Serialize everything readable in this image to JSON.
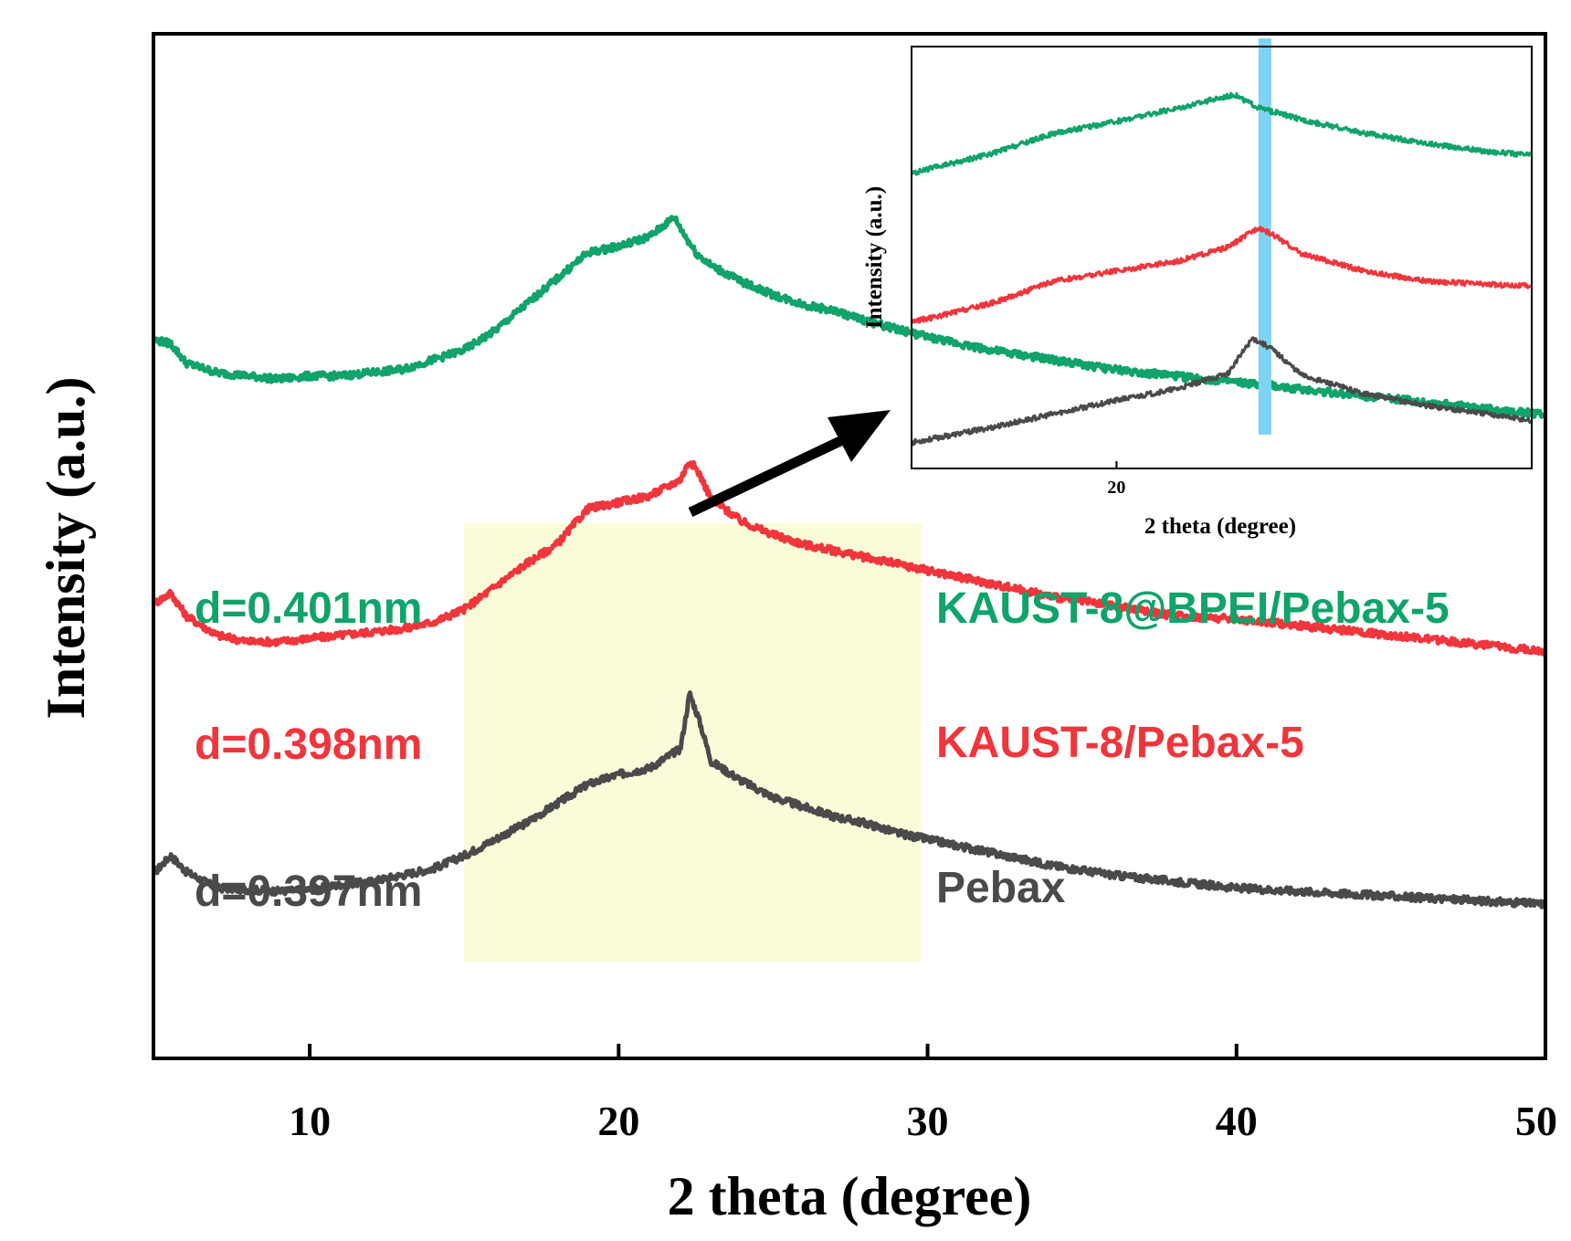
{
  "chart_data": {
    "type": "line",
    "title": "",
    "xlabel": "2 theta (degree)",
    "ylabel": "Intensity (a.u.)",
    "xlim": [
      5,
      50
    ],
    "x_ticks": [
      "10",
      "20",
      "30",
      "40",
      "50"
    ],
    "x_tick_values": [
      10,
      20,
      30,
      40,
      50
    ],
    "highlight_region": {
      "x_from": 15,
      "x_to": 29.8,
      "color": "#fafcd9"
    },
    "series": [
      {
        "name": "Pebax",
        "d_label": "d=0.397nm",
        "color": "#4a4a4a",
        "points": [
          [
            5,
            0.17
          ],
          [
            5.5,
            0.22
          ],
          [
            6,
            0.17
          ],
          [
            7,
            0.12
          ],
          [
            8,
            0.115
          ],
          [
            9,
            0.11
          ],
          [
            10,
            0.115
          ],
          [
            11,
            0.13
          ],
          [
            12,
            0.14
          ],
          [
            13,
            0.16
          ],
          [
            14,
            0.18
          ],
          [
            15,
            0.22
          ],
          [
            16,
            0.27
          ],
          [
            17,
            0.32
          ],
          [
            18,
            0.38
          ],
          [
            19,
            0.44
          ],
          [
            20,
            0.47
          ],
          [
            21,
            0.49
          ],
          [
            22,
            0.55
          ],
          [
            22.3,
            0.72
          ],
          [
            22.6,
            0.64
          ],
          [
            23,
            0.51
          ],
          [
            24,
            0.45
          ],
          [
            25,
            0.4
          ],
          [
            26,
            0.37
          ],
          [
            27,
            0.34
          ],
          [
            28,
            0.32
          ],
          [
            29,
            0.29
          ],
          [
            30,
            0.27
          ],
          [
            32,
            0.23
          ],
          [
            34,
            0.19
          ],
          [
            36,
            0.16
          ],
          [
            38,
            0.14
          ],
          [
            40,
            0.12
          ],
          [
            42,
            0.11
          ],
          [
            44,
            0.1
          ],
          [
            46,
            0.09
          ],
          [
            48,
            0.08
          ],
          [
            50,
            0.07
          ]
        ]
      },
      {
        "name": "KAUST-8/Pebax-5",
        "d_label": "d=0.398nm",
        "color": "#f0353c",
        "points": [
          [
            5,
            1.0
          ],
          [
            5.5,
            1.03
          ],
          [
            6,
            0.96
          ],
          [
            7,
            0.9
          ],
          [
            8,
            0.88
          ],
          [
            9,
            0.88
          ],
          [
            10,
            0.89
          ],
          [
            11,
            0.9
          ],
          [
            12,
            0.91
          ],
          [
            13,
            0.92
          ],
          [
            14,
            0.94
          ],
          [
            15,
            0.98
          ],
          [
            16,
            1.05
          ],
          [
            17,
            1.12
          ],
          [
            18,
            1.18
          ],
          [
            19,
            1.29
          ],
          [
            20,
            1.31
          ],
          [
            21,
            1.33
          ],
          [
            22,
            1.38
          ],
          [
            22.3,
            1.44
          ],
          [
            22.6,
            1.4
          ],
          [
            23,
            1.32
          ],
          [
            24,
            1.25
          ],
          [
            25,
            1.21
          ],
          [
            26,
            1.18
          ],
          [
            27,
            1.16
          ],
          [
            28,
            1.14
          ],
          [
            30,
            1.1
          ],
          [
            32,
            1.06
          ],
          [
            34,
            1.02
          ],
          [
            36,
            0.99
          ],
          [
            38,
            0.96
          ],
          [
            40,
            0.95
          ],
          [
            42,
            0.93
          ],
          [
            44,
            0.91
          ],
          [
            46,
            0.89
          ],
          [
            48,
            0.87
          ],
          [
            50,
            0.85
          ]
        ]
      },
      {
        "name": "KAUST-8@BPEI/Pebax-5",
        "d_label": "d=0.401nm",
        "color": "#10a36a",
        "points": [
          [
            5,
            1.81
          ],
          [
            5.5,
            1.8
          ],
          [
            6,
            1.74
          ],
          [
            7,
            1.71
          ],
          [
            8,
            1.7
          ],
          [
            9,
            1.69
          ],
          [
            10,
            1.7
          ],
          [
            11,
            1.7
          ],
          [
            12,
            1.71
          ],
          [
            13,
            1.72
          ],
          [
            14,
            1.75
          ],
          [
            15,
            1.78
          ],
          [
            16,
            1.84
          ],
          [
            17,
            1.92
          ],
          [
            18,
            2.0
          ],
          [
            19,
            2.08
          ],
          [
            20,
            2.1
          ],
          [
            21,
            2.13
          ],
          [
            21.8,
            2.19
          ],
          [
            22.1,
            2.14
          ],
          [
            22.5,
            2.08
          ],
          [
            23,
            2.04
          ],
          [
            24,
            1.99
          ],
          [
            25,
            1.95
          ],
          [
            26,
            1.92
          ],
          [
            27,
            1.9
          ],
          [
            28,
            1.87
          ],
          [
            30,
            1.82
          ],
          [
            32,
            1.78
          ],
          [
            34,
            1.75
          ],
          [
            36,
            1.72
          ],
          [
            38,
            1.7
          ],
          [
            40,
            1.68
          ],
          [
            42,
            1.66
          ],
          [
            44,
            1.64
          ],
          [
            46,
            1.62
          ],
          [
            48,
            1.6
          ],
          [
            50,
            1.58
          ]
        ]
      }
    ]
  },
  "inset_chart": {
    "xlabel": "2 theta (degree)",
    "ylabel": "Intensity (a.u.)",
    "x_tick": "20",
    "x_tick_value": 20,
    "xlim": [
      16.7,
      26.7
    ],
    "highlight_line": {
      "x": 22.4,
      "color": "#7fd3f2"
    },
    "series": [
      {
        "name": "Pebax",
        "color": "#4a4a4a",
        "points": [
          [
            16.7,
            0.0
          ],
          [
            17,
            0.02
          ],
          [
            18,
            0.09
          ],
          [
            19,
            0.17
          ],
          [
            20,
            0.25
          ],
          [
            21,
            0.32
          ],
          [
            21.8,
            0.41
          ],
          [
            22.2,
            0.62
          ],
          [
            22.5,
            0.56
          ],
          [
            23,
            0.4
          ],
          [
            24,
            0.29
          ],
          [
            25,
            0.22
          ],
          [
            26,
            0.17
          ],
          [
            26.7,
            0.13
          ]
        ]
      },
      {
        "name": "KAUST-8/Pebax-5",
        "color": "#f0353c",
        "points": [
          [
            16.7,
            0.72
          ],
          [
            17,
            0.74
          ],
          [
            18,
            0.83
          ],
          [
            19,
            0.96
          ],
          [
            20,
            1.02
          ],
          [
            21,
            1.08
          ],
          [
            21.8,
            1.16
          ],
          [
            22.3,
            1.28
          ],
          [
            22.6,
            1.22
          ],
          [
            23,
            1.12
          ],
          [
            24,
            1.02
          ],
          [
            25,
            0.96
          ],
          [
            26,
            0.94
          ],
          [
            26.7,
            0.93
          ]
        ]
      },
      {
        "name": "KAUST-8@BPEI/Pebax-5",
        "color": "#10a36a",
        "points": [
          [
            16.7,
            1.6
          ],
          [
            17,
            1.63
          ],
          [
            18,
            1.72
          ],
          [
            19,
            1.84
          ],
          [
            20,
            1.91
          ],
          [
            21,
            1.99
          ],
          [
            21.9,
            2.07
          ],
          [
            22.3,
            1.99
          ],
          [
            23,
            1.92
          ],
          [
            24,
            1.84
          ],
          [
            25,
            1.78
          ],
          [
            26,
            1.73
          ],
          [
            26.7,
            1.71
          ]
        ]
      }
    ]
  }
}
